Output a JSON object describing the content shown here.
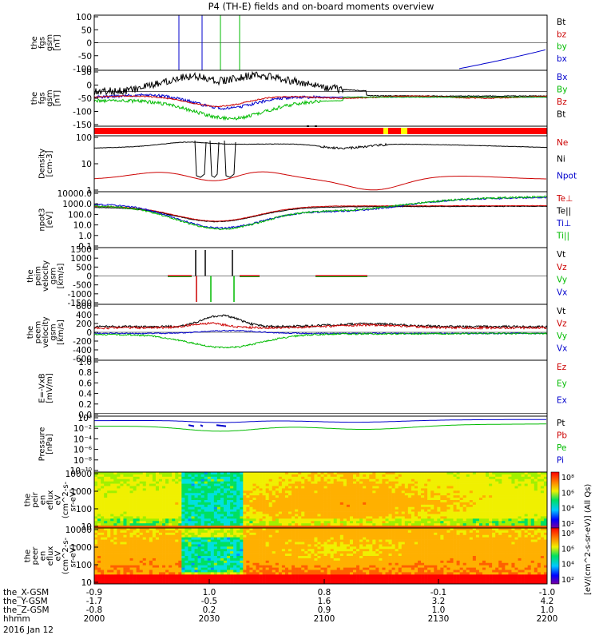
{
  "title": "P4 (TH-E) fields and on-board moments overview",
  "chart_data": [
    {
      "type": "line",
      "ylabel": [
        "the",
        "fgs",
        "gsm",
        "[nT]"
      ],
      "ylim": [
        -100,
        100
      ],
      "yticks": [
        "100",
        "50",
        "0",
        "-50",
        "-100"
      ],
      "legend": [
        {
          "label": "Bt",
          "color": "#000000"
        },
        {
          "label": "bz",
          "color": "#cc0000"
        },
        {
          "label": "by",
          "color": "#00bb00"
        },
        {
          "label": "bx",
          "color": "#0000cc"
        }
      ]
    },
    {
      "type": "line",
      "ylabel": [
        "the",
        "fgs",
        "gsm",
        "[nT]"
      ],
      "ylim": [
        -180,
        100
      ],
      "yticks": [
        "50",
        "0",
        "-50",
        "-100",
        "-150"
      ],
      "legend": [
        {
          "label": "Bx",
          "color": "#0000cc"
        },
        {
          "label": "By",
          "color": "#00bb00"
        },
        {
          "label": "Bz",
          "color": "#cc0000"
        },
        {
          "label": "Bt",
          "color": "#000000"
        }
      ]
    },
    {
      "type": "bar",
      "ylabel": []
    },
    {
      "type": "line",
      "ylabel": [
        "Density",
        "[cm-3]"
      ],
      "yscale": "log",
      "yticks": [
        "100",
        "10",
        "1"
      ],
      "legend": [
        {
          "label": "Ne",
          "color": "#cc0000"
        },
        {
          "label": "Ni",
          "color": "#000000"
        },
        {
          "label": "Npot",
          "color": "#0000cc"
        }
      ]
    },
    {
      "type": "line",
      "ylabel": [
        "npot3",
        "[eV]"
      ],
      "yscale": "log",
      "yticks": [
        "10000.0",
        "1000.0",
        "100.0",
        "10.0",
        "1.0",
        "0.1"
      ],
      "legend": [
        {
          "label": "Te⊥",
          "color": "#cc0000"
        },
        {
          "label": "Te||",
          "color": "#000000"
        },
        {
          "label": "Ti⊥",
          "color": "#0000cc"
        },
        {
          "label": "Ti||",
          "color": "#00bb00"
        }
      ]
    },
    {
      "type": "line",
      "ylabel": [
        "the",
        "peim",
        "velocity",
        "gsm",
        "[km/s]"
      ],
      "ylim": [
        -1700,
        1700
      ],
      "yticks": [
        "1500",
        "1000",
        "500",
        "0",
        "-500",
        "-1000",
        "-1500"
      ],
      "legend": [
        {
          "label": "Vt",
          "color": "#000000"
        },
        {
          "label": "Vz",
          "color": "#cc0000"
        },
        {
          "label": "Vy",
          "color": "#00bb00"
        },
        {
          "label": "Vx",
          "color": "#0000cc"
        }
      ]
    },
    {
      "type": "line",
      "ylabel": [
        "the",
        "peem",
        "velocity",
        "gsm",
        "[km/s]"
      ],
      "ylim": [
        -620,
        620
      ],
      "yticks": [
        "600",
        "400",
        "200",
        "0",
        "-200",
        "-400",
        "-600"
      ],
      "legend": [
        {
          "label": "Vt",
          "color": "#000000"
        },
        {
          "label": "Vz",
          "color": "#cc0000"
        },
        {
          "label": "Vy",
          "color": "#00bb00"
        },
        {
          "label": "Vx",
          "color": "#0000cc"
        }
      ]
    },
    {
      "type": "line",
      "ylabel": [
        "E=-VxB",
        "[mV/m]"
      ],
      "ylim": [
        -0.05,
        1.0
      ],
      "yticks": [
        "1.0",
        "0.8",
        "0.6",
        "0.4",
        "0.2",
        "0.0"
      ],
      "legend": [
        {
          "label": "Ez",
          "color": "#cc0000"
        },
        {
          "label": "Ey",
          "color": "#00bb00"
        },
        {
          "label": "Ex",
          "color": "#0000cc"
        }
      ]
    },
    {
      "type": "line",
      "ylabel": [
        "Pressure",
        "[nPa]"
      ],
      "yscale": "log",
      "yticks": [
        "10⁰",
        "10⁻²",
        "10⁻⁴",
        "10⁻⁶",
        "10⁻⁸",
        "10⁻¹⁰"
      ],
      "legend": [
        {
          "label": "Pt",
          "color": "#000000"
        },
        {
          "label": "Pb",
          "color": "#cc0000"
        },
        {
          "label": "Pe",
          "color": "#00bb00"
        },
        {
          "label": "Pi",
          "color": "#0000cc"
        }
      ]
    },
    {
      "type": "heatmap",
      "ylabel": [
        "the",
        "peir",
        "en",
        "eflux",
        "eV",
        "(cm^2-s-",
        "sr-eV)"
      ],
      "yscale": "log",
      "yticks": [
        "10000",
        "1000",
        "100",
        "10"
      ],
      "colorbar_ticks": [
        "10⁸",
        "10⁶",
        "10⁴",
        "10²"
      ]
    },
    {
      "type": "heatmap",
      "ylabel": [
        "the",
        "peer",
        "en",
        "eflux",
        "eV",
        "(cm^2-s-",
        "sr-eV)"
      ],
      "yscale": "log",
      "yticks": [
        "10000",
        "1000",
        "100",
        "10"
      ],
      "colorbar_ticks": [
        "10⁸",
        "10⁶",
        "10⁴",
        "10²"
      ]
    }
  ],
  "colorbar_label": "[eV/(cm^2-s-sr-eV)] (All Qs)",
  "x_axis": {
    "rows": [
      {
        "label": "the_X-GSM",
        "values": [
          "-0.9",
          "1.0",
          "0.8",
          "-0.1",
          "-1.0"
        ]
      },
      {
        "label": "the_Y-GSM",
        "values": [
          "-1.7",
          "-0.5",
          "1.6",
          "3.2",
          "4.2"
        ]
      },
      {
        "label": "the_Z-GSM",
        "values": [
          "-0.8",
          "0.2",
          "0.9",
          "1.0",
          "1.0"
        ]
      },
      {
        "label": "hhmm",
        "values": [
          "2000",
          "2030",
          "2100",
          "2130",
          "2200"
        ]
      }
    ],
    "date": "2016 Jan 12"
  }
}
